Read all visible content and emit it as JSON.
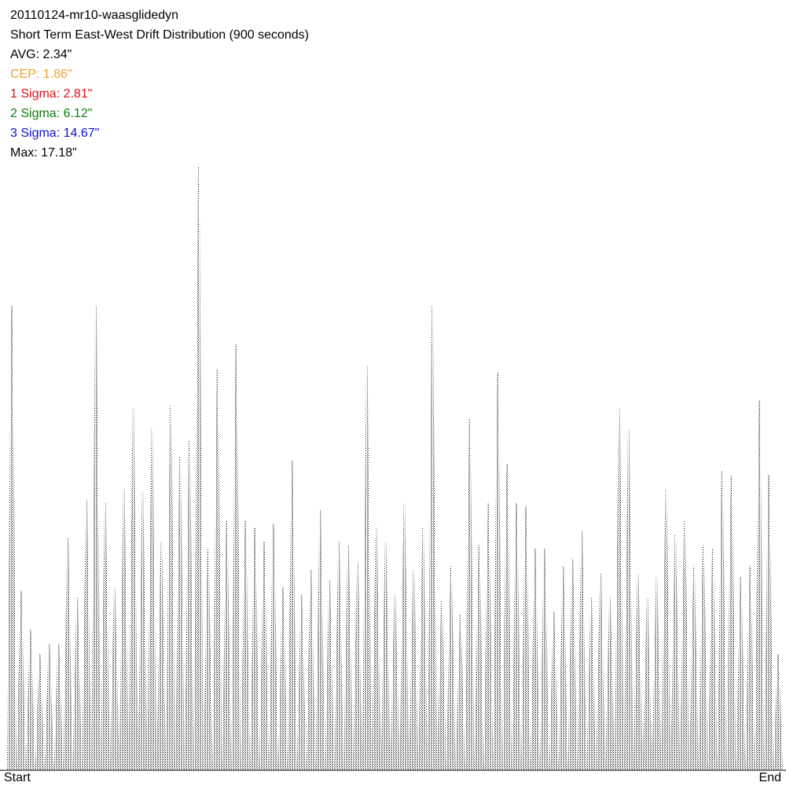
{
  "chart_data": {
    "type": "spike",
    "title": "20110124-mr10-waasglidedyn",
    "subtitle": "Short Term East-West Drift Distribution (900 seconds)",
    "stats": [
      {
        "text": "AVG: 2.34\"",
        "color": "#000000"
      },
      {
        "text": "CEP: 1.86\"",
        "color": "#f0a030"
      },
      {
        "text": "1 Sigma: 2.81\"",
        "color": "#e01010"
      },
      {
        "text": "2 Sigma: 6.12\"",
        "color": "#108010"
      },
      {
        "text": "3 Sigma: 14.67\"",
        "color": "#1010d0"
      },
      {
        "text": "Max: 17.18\"",
        "color": "#000000"
      }
    ],
    "x_labels": [
      "Start",
      "End"
    ],
    "color": "#000000",
    "ylim": [
      0,
      17.2
    ],
    "values": [
      13.2,
      5.1,
      4.0,
      3.3,
      3.6,
      3.6,
      6.6,
      4.9,
      7.7,
      13.2,
      7.6,
      5.2,
      8.0,
      10.3,
      7.9,
      9.7,
      6.5,
      10.4,
      8.9,
      9.4,
      17.18,
      6.3,
      11.4,
      7.1,
      12.1,
      7.1,
      6.9,
      6.5,
      7.0,
      5.2,
      8.8,
      5.0,
      5.7,
      7.4,
      5.4,
      6.5,
      6.4,
      5.9,
      11.5,
      6.9,
      6.5,
      5.0,
      7.6,
      5.7,
      6.9,
      13.2,
      4.8,
      5.8,
      4.4,
      10.0,
      6.4,
      7.6,
      11.3,
      8.7,
      7.6,
      7.5,
      6.3,
      6.3,
      4.5,
      5.8,
      6.0,
      6.8,
      4.9,
      5.6,
      4.9,
      10.3,
      9.7,
      5.6,
      4.9,
      5.5,
      8.0,
      6.7,
      7.1,
      5.8,
      6.4,
      6.3,
      8.5,
      8.4,
      5.5,
      5.8,
      10.5,
      8.4,
      3.3
    ]
  }
}
